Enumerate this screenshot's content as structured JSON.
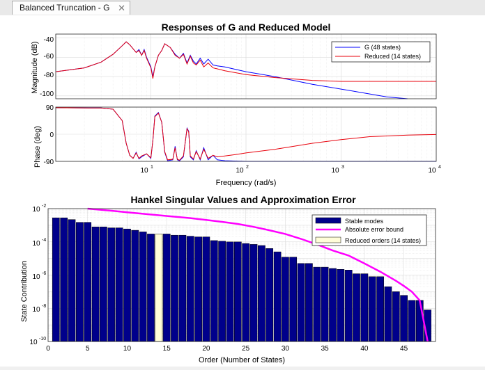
{
  "tab": {
    "title": "Balanced Truncation - G",
    "close_glyph": "✕"
  },
  "bode": {
    "title": "Responses of G and Reduced Model",
    "xlabel": "Frequency  (rad/s)",
    "mag_ylabel": "Magnitude (dB)",
    "phase_ylabel": "Phase (deg)",
    "mag_yticks": [
      "-40",
      "-60",
      "-80",
      "-100"
    ],
    "phase_yticks": [
      "90",
      "0",
      "-90"
    ],
    "xtick_bases": [
      "10",
      "10",
      "10",
      "10"
    ],
    "xtick_exps": [
      "1",
      "2",
      "3",
      "4"
    ],
    "legend": [
      "G (48 states)",
      "Reduced (14 states)"
    ],
    "colors": {
      "full": "#0000ff",
      "reduced": "#e8000b"
    }
  },
  "hankel": {
    "title": "Hankel Singular Values and Approximation Error",
    "xlabel": "Order (Number of States)",
    "ylabel": "State Contribution",
    "xticks": [
      "0",
      "5",
      "10",
      "15",
      "20",
      "25",
      "30",
      "35",
      "40",
      "45"
    ],
    "ytick_base": "10",
    "ytick_exps": [
      "-2",
      "-4",
      "-6",
      "-8",
      "-10"
    ],
    "legend": [
      "Stable modes",
      "Absolute error bound",
      "Reduced orders (14 states)"
    ],
    "colors": {
      "bars": "#00008b",
      "bound": "#ff00ff",
      "selected": "#fffdd8"
    }
  },
  "chart_data": [
    {
      "type": "line",
      "title": "Responses of G and Reduced Model",
      "xlabel": "Frequency  (rad/s)",
      "ylabel": "Magnitude (dB)",
      "xscale": "log",
      "xlim": [
        1,
        10000
      ],
      "ylim": [
        -103,
        -36
      ],
      "grid": true,
      "legend_position": "top-right",
      "series": [
        {
          "name": "G (48 states)",
          "x": [
            1,
            2,
            3,
            4,
            5,
            5.5,
            6,
            7,
            7.5,
            8,
            8.5,
            9,
            10,
            10.5,
            11,
            12,
            13,
            14,
            16,
            18,
            20,
            22,
            24,
            26,
            28,
            30,
            33,
            36,
            40,
            45,
            50,
            60,
            100,
            200,
            500,
            1000,
            2000,
            3000,
            5000
          ],
          "y": [
            -75,
            -71,
            -65,
            -57,
            -48,
            -44,
            -47,
            -55,
            -52,
            -58,
            -52,
            -60,
            -70,
            -80,
            -70,
            -58,
            -53,
            -46,
            -50,
            -57,
            -61,
            -56,
            -66,
            -58,
            -64,
            -67,
            -61,
            -67,
            -62,
            -68,
            -69,
            -70,
            -75,
            -80,
            -88,
            -93,
            -98,
            -101,
            -103
          ]
        },
        {
          "name": "Reduced (14 states)",
          "x": [
            1,
            2,
            3,
            4,
            5,
            5.5,
            6,
            7,
            7.5,
            8,
            8.5,
            9,
            10,
            10.5,
            11,
            12,
            13,
            14,
            16,
            18,
            20,
            22,
            24,
            26,
            28,
            30,
            33,
            36,
            40,
            45,
            50,
            60,
            100,
            200,
            500,
            1000,
            2000,
            5000,
            10000
          ],
          "y": [
            -75,
            -71,
            -65,
            -57,
            -48,
            -44,
            -47,
            -55,
            -53,
            -58,
            -53,
            -61,
            -71,
            -82,
            -70,
            -58,
            -53,
            -46,
            -50,
            -58,
            -61,
            -57,
            -67,
            -59,
            -66,
            -68,
            -63,
            -70,
            -66,
            -71,
            -72,
            -74,
            -78,
            -81,
            -84,
            -85,
            -85,
            -85,
            -85
          ]
        }
      ]
    },
    {
      "type": "line",
      "xlabel": "Frequency  (rad/s)",
      "ylabel": "Phase (deg)",
      "xscale": "log",
      "xlim": [
        1,
        10000
      ],
      "ylim": [
        -90,
        90
      ],
      "grid": true,
      "series": [
        {
          "name": "G (48 states)",
          "x": [
            1,
            3,
            4,
            5,
            5.5,
            6,
            6.5,
            7,
            7.5,
            8,
            9,
            10,
            10.5,
            11,
            12,
            13,
            14,
            15,
            17,
            18,
            19,
            20,
            22,
            24,
            25,
            26,
            28,
            30,
            33,
            36,
            40,
            45,
            50,
            60,
            100,
            1000,
            10000
          ],
          "y": [
            88,
            87,
            83,
            45,
            -30,
            -70,
            -80,
            -60,
            -82,
            -75,
            -65,
            -80,
            -20,
            60,
            72,
            40,
            -60,
            -88,
            -85,
            -40,
            -85,
            -88,
            -75,
            20,
            10,
            -75,
            -85,
            -55,
            -85,
            -45,
            -85,
            -70,
            -85,
            -88,
            -90,
            -90,
            -90
          ]
        },
        {
          "name": "Reduced (14 states)",
          "x": [
            1,
            3,
            4,
            5,
            5.5,
            6,
            6.5,
            7,
            7.5,
            8,
            9,
            10,
            10.5,
            11,
            12,
            13,
            14,
            15,
            17,
            18,
            19,
            20,
            22,
            24,
            25,
            26,
            28,
            30,
            33,
            36,
            40,
            45,
            50,
            60,
            80,
            100,
            200,
            500,
            1000,
            2000,
            5000,
            10000
          ],
          "y": [
            88,
            87,
            83,
            45,
            -30,
            -70,
            -80,
            -62,
            -80,
            -72,
            -65,
            -78,
            -20,
            58,
            70,
            40,
            -58,
            -85,
            -83,
            -45,
            -83,
            -86,
            -72,
            18,
            8,
            -72,
            -82,
            -58,
            -82,
            -50,
            -80,
            -70,
            -75,
            -72,
            -67,
            -62,
            -50,
            -30,
            -18,
            -8,
            -3,
            -1
          ]
        }
      ]
    },
    {
      "type": "bar",
      "title": "Hankel Singular Values and Approximation Error",
      "xlabel": "Order (Number of States)",
      "ylabel": "State Contribution",
      "yscale": "log",
      "xlim": [
        0,
        49
      ],
      "ylim": [
        1e-10,
        0.01
      ],
      "grid": true,
      "legend_position": "top-right",
      "categories": [
        1,
        2,
        3,
        4,
        5,
        6,
        7,
        8,
        9,
        10,
        11,
        12,
        13,
        14,
        15,
        16,
        17,
        18,
        19,
        20,
        21,
        22,
        23,
        24,
        25,
        26,
        27,
        28,
        29,
        30,
        31,
        32,
        33,
        34,
        35,
        36,
        37,
        38,
        39,
        40,
        41,
        42,
        43,
        44,
        45,
        46,
        47,
        48
      ],
      "selected_order": 14,
      "series": [
        {
          "name": "Stable modes",
          "values": [
            0.0028,
            0.0028,
            0.0022,
            0.0015,
            0.0015,
            0.0008,
            0.0008,
            0.0007,
            0.0007,
            0.0006,
            0.0005,
            0.0004,
            0.0003,
            0.0003,
            0.0003,
            0.00025,
            0.00025,
            0.00022,
            0.0002,
            0.0002,
            0.00012,
            0.00011,
            0.0001,
            0.0001,
            8e-05,
            7e-05,
            6e-05,
            4e-05,
            2.5e-05,
            1.2e-05,
            1.2e-05,
            5e-06,
            5e-06,
            3e-06,
            3e-06,
            2.5e-06,
            2.2e-06,
            2e-06,
            1.2e-06,
            1.2e-06,
            8e-07,
            8e-07,
            2e-07,
            1e-07,
            6e-08,
            3e-08,
            3e-08,
            8e-09
          ]
        },
        {
          "name": "Absolute error bound",
          "x": [
            5,
            8,
            10,
            14,
            18,
            20,
            22,
            24,
            26,
            28,
            30,
            32,
            34,
            36,
            38,
            40,
            42,
            44,
            45,
            46,
            47,
            48
          ],
          "values": [
            0.01,
            0.0075,
            0.006,
            0.004,
            0.0027,
            0.0021,
            0.0016,
            0.0012,
            0.0008,
            0.0005,
            0.0003,
            0.00015,
            7e-05,
            3e-05,
            1.5e-05,
            5e-06,
            1.6e-06,
            4.5e-07,
            2.2e-07,
            1e-07,
            3e-08,
            1e-10
          ]
        }
      ]
    }
  ]
}
